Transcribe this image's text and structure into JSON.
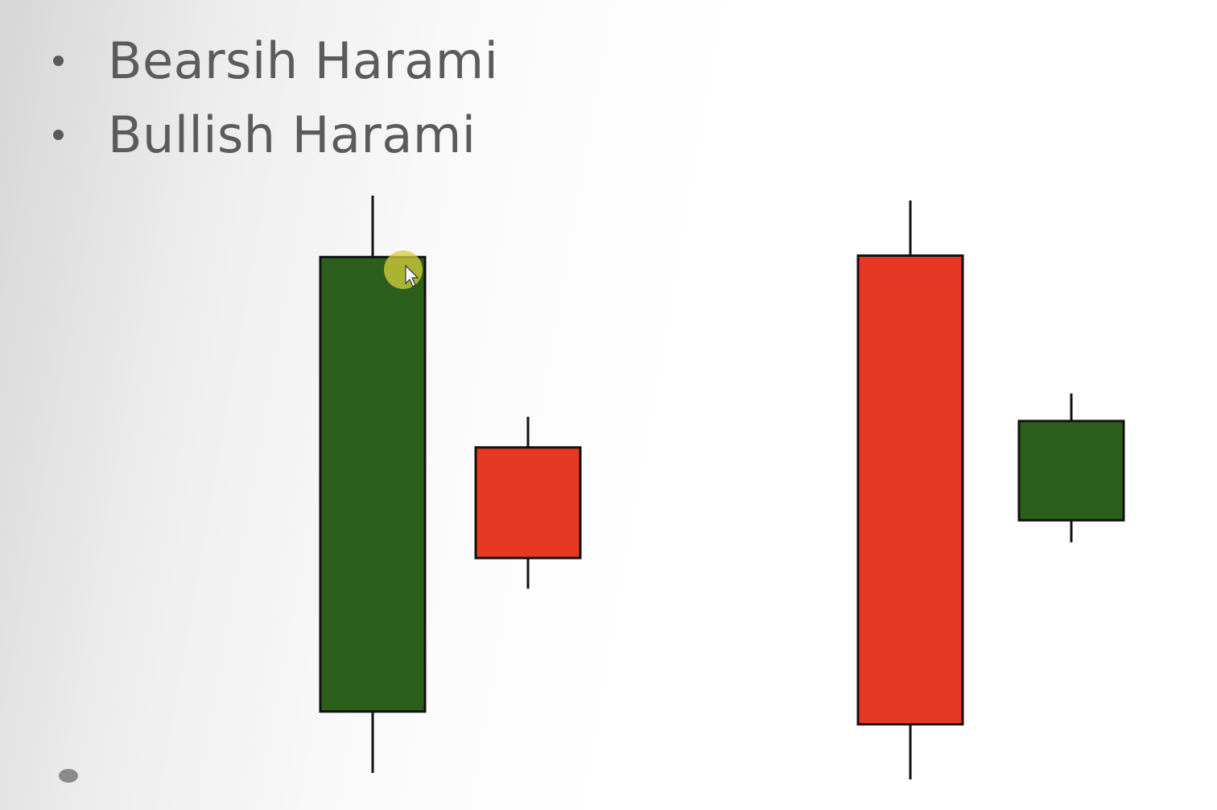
{
  "slide": {
    "bullets": [
      {
        "text": "Bearsih Harami"
      },
      {
        "text": "Bullish Harami"
      }
    ]
  },
  "colors": {
    "bullish": "#2d5f1c",
    "bearish": "#e63822",
    "outline": "#111111",
    "text": "#5b5b5b"
  },
  "patterns": [
    {
      "name_ref": "bullets.0",
      "candles": [
        {
          "direction": "bullish",
          "open": 22,
          "close": 96,
          "high": 106,
          "low": 12
        },
        {
          "direction": "bearish",
          "open": 65,
          "close": 47,
          "high": 70,
          "low": 42
        }
      ]
    },
    {
      "name_ref": "bullets.1",
      "candles": [
        {
          "direction": "bearish",
          "open": 95,
          "close": 10,
          "high": 105,
          "low": 0
        },
        {
          "direction": "bullish",
          "open": 47,
          "close": 65,
          "high": 70,
          "low": 43
        }
      ]
    }
  ],
  "cursor": {
    "visible": true,
    "highlight_color": "#d6cf3a"
  }
}
